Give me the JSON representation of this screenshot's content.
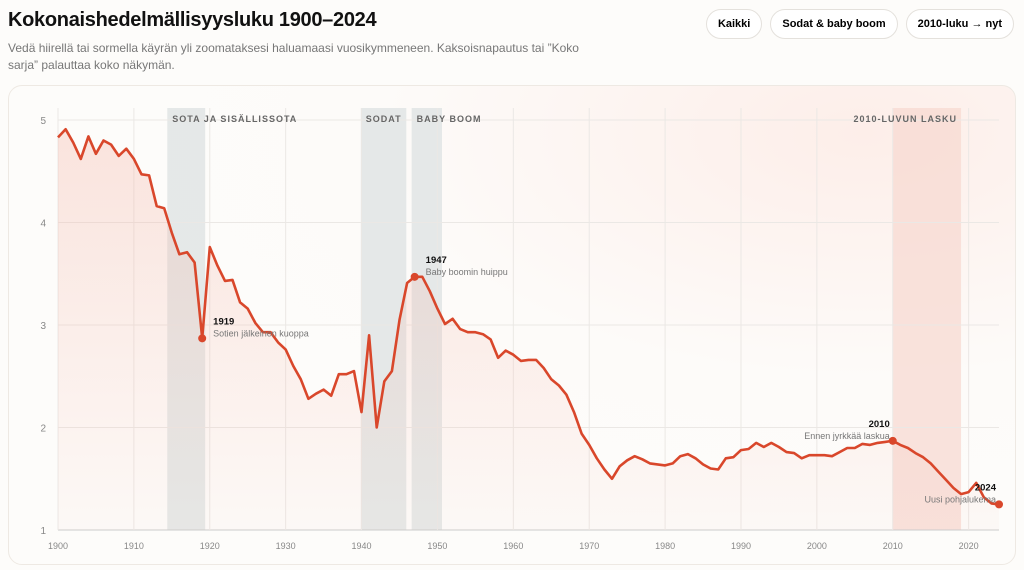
{
  "header": {
    "title": "Kokonaishedelmällisyysluku 1900–2024",
    "subtitle": "Vedä hiirellä tai sormella käyrän yli zoomataksesi haluamaasi vuosikymmeneen. Kaksoisnapautus tai ”Koko sarja” palauttaa koko näkymän."
  },
  "buttons": [
    {
      "label": "Kaikki"
    },
    {
      "label": "Sodat & baby boom"
    },
    {
      "label": "2010-luku → nyt"
    }
  ],
  "colors": {
    "line": "#d9472b",
    "band_gray": "#dfe3e3",
    "band_red": "#f7d9d2"
  },
  "chart_data": {
    "type": "line",
    "title": "Kokonaishedelmällisyysluku 1900–2024",
    "xlim": [
      1900,
      2024
    ],
    "ylim": [
      1,
      5
    ],
    "xticks": [
      1900,
      1910,
      1920,
      1930,
      1940,
      1950,
      1960,
      1970,
      1980,
      1990,
      2000,
      2010,
      2020
    ],
    "yticks": [
      1,
      2,
      3,
      4,
      5
    ],
    "x_start": 1900,
    "values": [
      4.83,
      4.91,
      4.78,
      4.62,
      4.84,
      4.67,
      4.8,
      4.76,
      4.65,
      4.72,
      4.62,
      4.47,
      4.46,
      4.16,
      4.14,
      3.9,
      3.69,
      3.71,
      3.61,
      2.87,
      3.76,
      3.58,
      3.43,
      3.44,
      3.22,
      3.16,
      3.02,
      2.93,
      2.93,
      2.83,
      2.76,
      2.6,
      2.47,
      2.28,
      2.33,
      2.37,
      2.31,
      2.52,
      2.52,
      2.55,
      2.15,
      2.9,
      2.0,
      2.45,
      2.55,
      3.05,
      3.41,
      3.47,
      3.47,
      3.33,
      3.16,
      3.01,
      3.06,
      2.96,
      2.93,
      2.93,
      2.91,
      2.86,
      2.68,
      2.75,
      2.71,
      2.65,
      2.66,
      2.66,
      2.58,
      2.47,
      2.41,
      2.32,
      2.15,
      1.94,
      1.83,
      1.7,
      1.59,
      1.5,
      1.62,
      1.68,
      1.72,
      1.69,
      1.65,
      1.64,
      1.63,
      1.65,
      1.72,
      1.74,
      1.7,
      1.64,
      1.6,
      1.59,
      1.7,
      1.71,
      1.78,
      1.79,
      1.85,
      1.81,
      1.85,
      1.81,
      1.76,
      1.75,
      1.7,
      1.73,
      1.73,
      1.73,
      1.72,
      1.76,
      1.8,
      1.8,
      1.84,
      1.83,
      1.85,
      1.86,
      1.87,
      1.83,
      1.8,
      1.75,
      1.71,
      1.65,
      1.57,
      1.49,
      1.41,
      1.35,
      1.37,
      1.46,
      1.32,
      1.26,
      1.25
    ],
    "bands": [
      {
        "label": "SOTA JA SISÄLLISSOTA",
        "from": 1914.4,
        "to": 1919.4,
        "tone": "gray"
      },
      {
        "label": "SODAT",
        "from": 1939.9,
        "to": 1945.9,
        "tone": "gray"
      },
      {
        "label": "BABY BOOM",
        "from": 1946.6,
        "to": 1950.6,
        "tone": "gray"
      },
      {
        "label": "2010-LUVUN LASKU",
        "from": 2010,
        "to": 2019,
        "tone": "red"
      }
    ],
    "annotations": [
      {
        "year": 1919,
        "value": 2.87,
        "title": "1919",
        "text": "Sotien jälkeinen kuoppa",
        "side": "right"
      },
      {
        "year": 1947,
        "value": 3.47,
        "title": "1947",
        "text": "Baby boomin huippu",
        "side": "right"
      },
      {
        "year": 2010,
        "value": 1.87,
        "title": "2010",
        "text": "Ennen jyrkkää laskua",
        "side": "left"
      },
      {
        "year": 2024,
        "value": 1.25,
        "title": "2024",
        "text": "Uusi pohjalukema",
        "side": "left"
      }
    ]
  }
}
